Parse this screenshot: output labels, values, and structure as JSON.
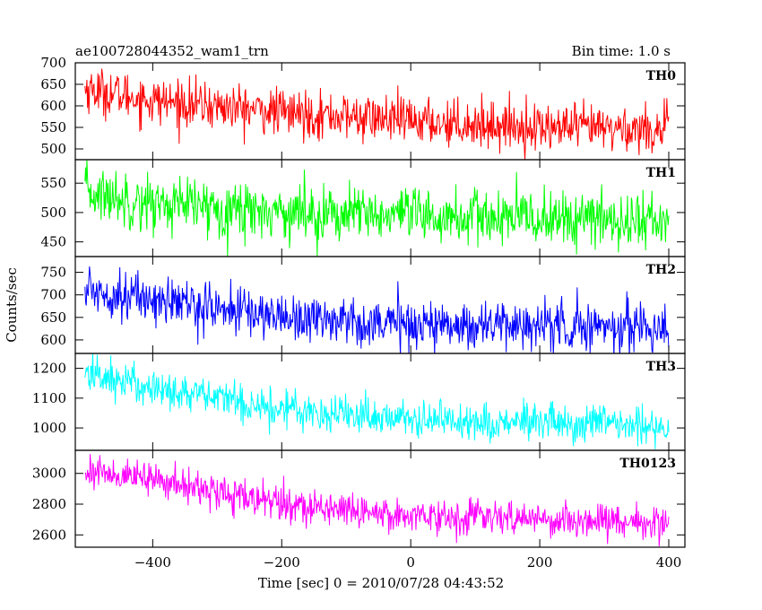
{
  "header": {
    "title": "ae100728044352_wam1_trn",
    "bin_time": "Bin time: 1.0 s"
  },
  "chart_data": {
    "type": "line",
    "title": "ae100728044352_wam1_trn",
    "xlabel": "Time [sec] 0 = 2010/07/28 04:43:52",
    "ylabel": "Counts/sec",
    "xlim": [
      -520,
      425
    ],
    "x_ticks": [
      "−400",
      "−200",
      "0",
      "200",
      "400"
    ],
    "x_tick_values": [
      -400,
      -200,
      0,
      200,
      400
    ],
    "x_range": [
      -505,
      400
    ],
    "bin_seconds": 1.0,
    "grid": false,
    "panels": [
      {
        "name": "TH0",
        "color": "#ff0000",
        "ylim": [
          475,
          700
        ],
        "y_ticks": [
          "500",
          "550",
          "600",
          "650",
          "700"
        ],
        "y_tick_values": [
          500,
          550,
          600,
          650,
          700
        ],
        "trend": [
          [
            -505,
            640
          ],
          [
            -400,
            612
          ],
          [
            -200,
            585
          ],
          [
            0,
            565
          ],
          [
            200,
            550
          ],
          [
            400,
            545
          ]
        ],
        "noise": 27
      },
      {
        "name": "TH1",
        "color": "#00ff00",
        "ylim": [
          425,
          590
        ],
        "y_ticks": [
          "450",
          "500",
          "550"
        ],
        "y_tick_values": [
          450,
          500,
          550
        ],
        "trend": [
          [
            -505,
            535
          ],
          [
            -400,
            515
          ],
          [
            -200,
            502
          ],
          [
            0,
            492
          ],
          [
            200,
            490
          ],
          [
            400,
            485
          ]
        ],
        "noise": 24
      },
      {
        "name": "TH2",
        "color": "#0000ff",
        "ylim": [
          570,
          785
        ],
        "y_ticks": [
          "600",
          "650",
          "700",
          "750"
        ],
        "y_tick_values": [
          600,
          650,
          700,
          750
        ],
        "trend": [
          [
            -505,
            712
          ],
          [
            -400,
            690
          ],
          [
            -200,
            652
          ],
          [
            0,
            635
          ],
          [
            200,
            632
          ],
          [
            400,
            628
          ]
        ],
        "noise": 27
      },
      {
        "name": "TH3",
        "color": "#00ffff",
        "ylim": [
          925,
          1250
        ],
        "y_ticks": [
          "1000",
          "1100",
          "1200"
        ],
        "y_tick_values": [
          1000,
          1100,
          1200
        ],
        "trend": [
          [
            -505,
            1185
          ],
          [
            -400,
            1135
          ],
          [
            -200,
            1065
          ],
          [
            0,
            1030
          ],
          [
            200,
            1015
          ],
          [
            400,
            1005
          ]
        ],
        "noise": 33
      },
      {
        "name": "TH0123",
        "color": "#ff00ff",
        "ylim": [
          2520,
          3150
        ],
        "y_ticks": [
          "2600",
          "2800",
          "3000"
        ],
        "y_tick_values": [
          2600,
          2800,
          3000
        ],
        "trend": [
          [
            -505,
            3020
          ],
          [
            -400,
            2960
          ],
          [
            -200,
            2800
          ],
          [
            0,
            2730
          ],
          [
            200,
            2700
          ],
          [
            400,
            2680
          ]
        ],
        "noise": 55
      }
    ]
  }
}
